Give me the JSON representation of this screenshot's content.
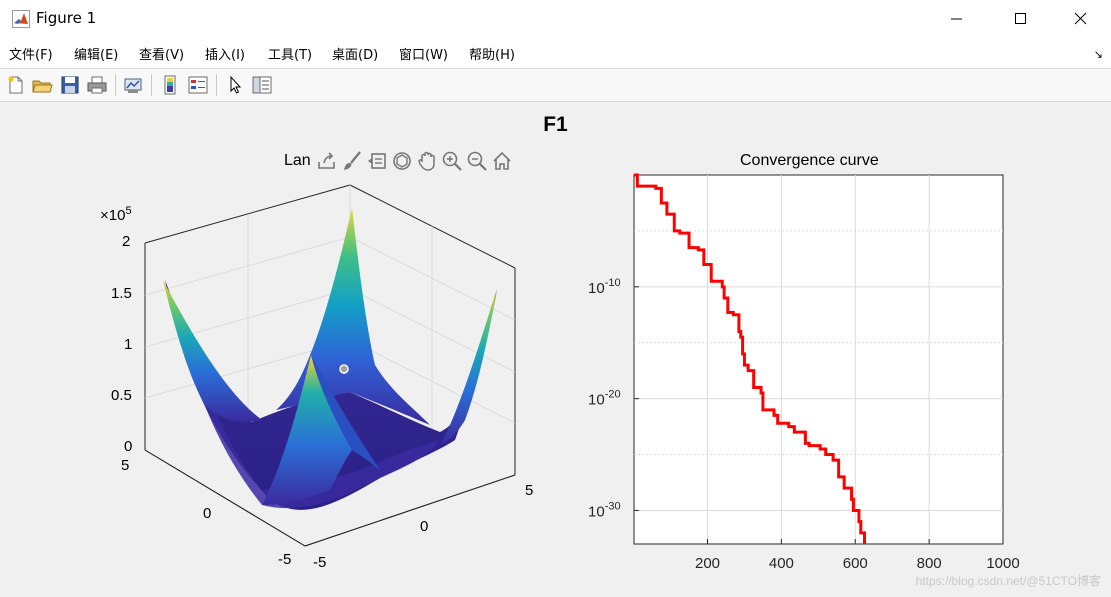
{
  "window": {
    "title": "Figure 1",
    "controls": [
      "minimize",
      "maximize",
      "close"
    ]
  },
  "menubar": {
    "items": [
      "文件(F)",
      "编辑(E)",
      "查看(V)",
      "插入(I)",
      "工具(T)",
      "桌面(D)",
      "窗口(W)",
      "帮助(H)"
    ],
    "dock_glyph": "↘"
  },
  "toolbar": {
    "buttons": [
      "new-figure-icon",
      "open-file-icon",
      "save-icon",
      "print-icon",
      "link-plot-icon",
      "insert-colorbar-icon",
      "insert-legend-icon",
      "pointer-icon",
      "property-inspector-icon"
    ]
  },
  "figure": {
    "title": "F1"
  },
  "surface_axes": {
    "title": "Lan",
    "exponent_label": "×10",
    "exponent_power": "5",
    "z_ticks": [
      "2",
      "1.5",
      "1",
      "0.5",
      "0"
    ],
    "y_ticks": [
      "5",
      "0",
      "-5"
    ],
    "x_ticks": [
      "-5",
      "0",
      "5"
    ],
    "axes_toolbar": [
      "export-icon",
      "brush-icon",
      "data-tip-icon",
      "rotate-icon",
      "pan-icon",
      "zoom-in-icon",
      "zoom-out-icon",
      "home-icon"
    ]
  },
  "curve_axes": {
    "title": "Convergence curve",
    "x_ticks": [
      "200",
      "400",
      "600",
      "800",
      "1000"
    ],
    "y_tick_base": "10",
    "y_tick_powers": [
      "-10",
      "-20",
      "-30"
    ]
  },
  "colors": {
    "curve": "#ff0000",
    "grid": "#dcdcdc",
    "axes": "#262626"
  },
  "chart_data": [
    {
      "type": "line",
      "title": "Convergence curve",
      "xlabel": "",
      "ylabel": "",
      "xlim": [
        1,
        1000
      ],
      "ylim": [
        1e-33,
        1
      ],
      "yscale": "log",
      "grid": true,
      "series": [
        {
          "points": [
            [
              1,
              0
            ],
            [
              10,
              -1
            ],
            [
              30,
              -1
            ],
            [
              60,
              -1.2
            ],
            [
              75,
              -2.5
            ],
            [
              90,
              -3.5
            ],
            [
              110,
              -5
            ],
            [
              125,
              -5.2
            ],
            [
              150,
              -6.5
            ],
            [
              175,
              -6.7
            ],
            [
              190,
              -8
            ],
            [
              210,
              -8.5
            ],
            [
              210,
              -9.5
            ],
            [
              240,
              -10
            ],
            [
              245,
              -11
            ],
            [
              255,
              -12
            ],
            [
              255,
              -12.3
            ],
            [
              270,
              -12.5
            ],
            [
              285,
              -14
            ],
            [
              290,
              -14.5
            ],
            [
              295,
              -16
            ],
            [
              300,
              -17
            ],
            [
              310,
              -17.5
            ],
            [
              325,
              -19
            ],
            [
              345,
              -19.5
            ],
            [
              350,
              -21
            ],
            [
              380,
              -21.5
            ],
            [
              390,
              -22.2
            ],
            [
              420,
              -22.5
            ],
            [
              435,
              -23
            ],
            [
              465,
              -24
            ],
            [
              475,
              -24.2
            ],
            [
              505,
              -24.5
            ],
            [
              520,
              -25
            ],
            [
              540,
              -25.5
            ],
            [
              555,
              -27
            ],
            [
              570,
              -28
            ],
            [
              590,
              -29
            ],
            [
              595,
              -30
            ],
            [
              610,
              -31
            ],
            [
              615,
              -32
            ],
            [
              625,
              -33
            ]
          ]
        }
      ]
    }
  ]
}
